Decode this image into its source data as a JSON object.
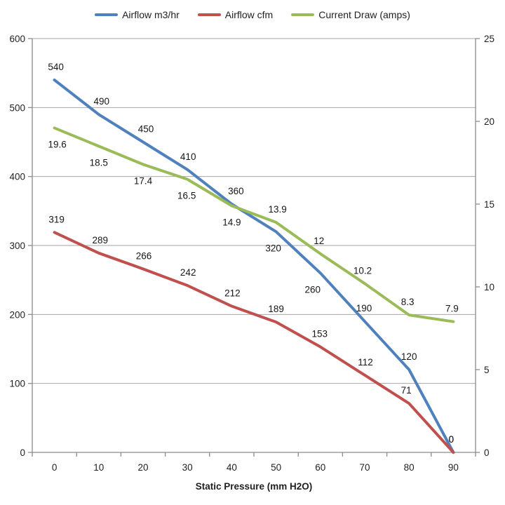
{
  "chart_data": {
    "type": "line",
    "title": "",
    "xlabel": "Static Pressure (mm H2O)",
    "ylabel_left": "",
    "ylabel_right": "",
    "grid": true,
    "legend_position": "top",
    "categories": [
      0,
      10,
      20,
      30,
      40,
      50,
      60,
      70,
      80,
      90
    ],
    "x_tick_labels": [
      "0",
      "10",
      "20",
      "30",
      "40",
      "50",
      "60",
      "70",
      "80",
      "90"
    ],
    "axes": {
      "left": {
        "min": 0,
        "max": 600,
        "step": 100,
        "tick_labels": [
          "0",
          "100",
          "200",
          "300",
          "400",
          "500",
          "600"
        ]
      },
      "right": {
        "min": 0,
        "max": 25,
        "step": 5,
        "tick_labels": [
          "0",
          "5",
          "10",
          "15",
          "20",
          "25"
        ]
      }
    },
    "series": [
      {
        "name": "Airflow m3/hr",
        "color": "#4F81BD",
        "axis": "left",
        "values": [
          540,
          490,
          450,
          410,
          360,
          320,
          260,
          190,
          120,
          0
        ],
        "labels": [
          "540",
          "490",
          "450",
          "410",
          "360",
          "320",
          "260",
          "190",
          "120",
          "0"
        ],
        "label_side": [
          "above",
          "above",
          "above",
          "above",
          "above",
          "below",
          "below",
          "above",
          "above",
          "above"
        ],
        "label_dx": [
          2,
          4,
          4,
          1,
          6,
          -4,
          -11,
          -1,
          0,
          -3
        ]
      },
      {
        "name": "Airflow cfm",
        "color": "#C0504D",
        "axis": "left",
        "values": [
          319,
          289,
          266,
          242,
          212,
          189,
          153,
          112,
          71,
          0
        ],
        "labels": [
          "319",
          "289",
          "266",
          "242",
          "212",
          "189",
          "153",
          "112",
          "71",
          "0"
        ],
        "label_side": [
          "above",
          "above",
          "above",
          "above",
          "above",
          "above",
          "above",
          "above",
          "above",
          "above"
        ],
        "label_dx": [
          3,
          2,
          1,
          1,
          1,
          0,
          -1,
          1,
          -4,
          -3
        ]
      },
      {
        "name": "Current Draw (amps)",
        "color": "#9BBB59",
        "axis": "right",
        "values": [
          19.6,
          18.5,
          17.4,
          16.5,
          14.9,
          13.9,
          12,
          10.2,
          8.3,
          7.9
        ],
        "labels": [
          "19.6",
          "18.5",
          "17.4",
          "16.5",
          "14.9",
          "13.9",
          "12",
          "10.2",
          "8.3",
          "7.9"
        ],
        "label_side": [
          "below",
          "below",
          "below",
          "below",
          "below",
          "above",
          "above",
          "above",
          "above",
          "above"
        ],
        "label_dx": [
          4,
          0,
          0,
          -1,
          0,
          2,
          -2,
          -3,
          -2,
          -2
        ]
      }
    ]
  },
  "colors": {
    "gridline": "#a6a6a6",
    "axis": "#8c8c8c",
    "tick_text": "#1f1f1f",
    "background": "#ffffff"
  }
}
